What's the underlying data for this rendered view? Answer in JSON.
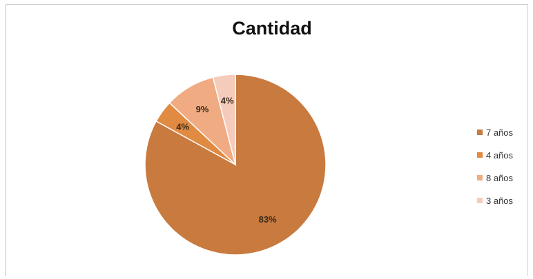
{
  "chart_data": {
    "type": "pie",
    "title": "Cantidad",
    "categories": [
      "7 años",
      "4 años",
      "8 años",
      "3 años"
    ],
    "values": [
      83,
      4,
      9,
      4
    ],
    "labels": [
      "83%",
      "4%",
      "9%",
      "4%"
    ],
    "colors": [
      "#c97a3f",
      "#e18a42",
      "#f0ab82",
      "#f5cbbb"
    ],
    "legend": "right"
  }
}
